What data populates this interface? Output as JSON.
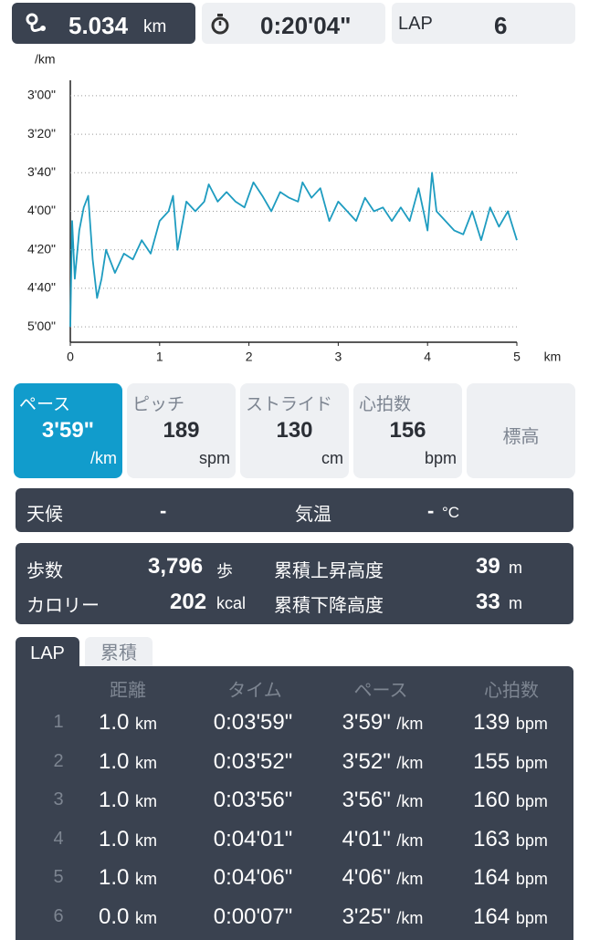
{
  "header": {
    "distance": "5.034",
    "distance_unit": "km",
    "time": "0:20'04\"",
    "lap_label": "LAP",
    "lap": "6"
  },
  "chart_data": {
    "type": "line",
    "y_label": "/km",
    "x_label": "km",
    "color": "#1e9cc0",
    "x": [
      0,
      0.02,
      0.05,
      0.1,
      0.15,
      0.2,
      0.25,
      0.3,
      0.35,
      0.4,
      0.5,
      0.6,
      0.7,
      0.8,
      0.9,
      1.0,
      1.1,
      1.15,
      1.2,
      1.3,
      1.4,
      1.5,
      1.55,
      1.65,
      1.75,
      1.85,
      1.95,
      2.05,
      2.15,
      2.25,
      2.35,
      2.45,
      2.55,
      2.6,
      2.7,
      2.8,
      2.9,
      3.0,
      3.1,
      3.2,
      3.3,
      3.4,
      3.5,
      3.6,
      3.7,
      3.8,
      3.9,
      4.0,
      4.05,
      4.1,
      4.2,
      4.3,
      4.4,
      4.5,
      4.6,
      4.7,
      4.8,
      4.9,
      5.0
    ],
    "values": [
      300,
      245,
      275,
      250,
      238,
      232,
      265,
      285,
      275,
      260,
      272,
      262,
      265,
      255,
      262,
      245,
      240,
      232,
      260,
      235,
      240,
      235,
      226,
      235,
      230,
      235,
      238,
      225,
      232,
      240,
      230,
      233,
      235,
      225,
      233,
      228,
      245,
      235,
      240,
      245,
      233,
      240,
      238,
      245,
      238,
      245,
      228,
      250,
      220,
      240,
      245,
      250,
      252,
      240,
      255,
      238,
      248,
      240,
      255
    ],
    "xlim": [
      0,
      5
    ],
    "xticks": [
      0,
      1,
      2,
      3,
      4,
      5
    ],
    "ylim": [
      172,
      308
    ],
    "y_reversed": true,
    "grid": true,
    "yticks": [
      {
        "value": 180,
        "label": "3'00\""
      },
      {
        "value": 200,
        "label": "3'20\""
      },
      {
        "value": 220,
        "label": "3'40\""
      },
      {
        "value": 240,
        "label": "4'00\""
      },
      {
        "value": 260,
        "label": "4'20\""
      },
      {
        "value": 280,
        "label": "4'40\""
      },
      {
        "value": 300,
        "label": "5'00\""
      }
    ]
  },
  "metrics": [
    {
      "label": "ペース",
      "value": "3'59\"",
      "unit": "/km"
    },
    {
      "label": "ピッチ",
      "value": "189",
      "unit": "spm"
    },
    {
      "label": "ストライド",
      "value": "130",
      "unit": "cm"
    },
    {
      "label": "心拍数",
      "value": "156",
      "unit": "bpm"
    },
    {
      "label": "標高"
    }
  ],
  "weather": {
    "label": "天候",
    "value": "-",
    "temp_label": "気温",
    "temp_value": "-",
    "temp_unit": "°C"
  },
  "stats": {
    "steps_label": "歩数",
    "steps": "3,796",
    "steps_unit": "歩",
    "calories_label": "カロリー",
    "calories": "202",
    "calories_unit": "kcal",
    "ascent_label": "累積上昇高度",
    "ascent": "39",
    "ascent_unit": "m",
    "descent_label": "累積下降高度",
    "descent": "33",
    "descent_unit": "m"
  },
  "tabs": [
    "LAP",
    "累積"
  ],
  "table": {
    "headers": [
      "距離",
      "タイム",
      "ペース",
      "心拍数"
    ],
    "rows": [
      [
        "1",
        "1.0",
        "km",
        "0:03'59\"",
        "3'59\"",
        "/km",
        "139",
        "bpm"
      ],
      [
        "2",
        "1.0",
        "km",
        "0:03'52\"",
        "3'52\"",
        "/km",
        "155",
        "bpm"
      ],
      [
        "3",
        "1.0",
        "km",
        "0:03'56\"",
        "3'56\"",
        "/km",
        "160",
        "bpm"
      ],
      [
        "4",
        "1.0",
        "km",
        "0:04'01\"",
        "4'01\"",
        "/km",
        "163",
        "bpm"
      ],
      [
        "5",
        "1.0",
        "km",
        "0:04'06\"",
        "4'06\"",
        "/km",
        "164",
        "bpm"
      ],
      [
        "6",
        "0.0",
        "km",
        "0:00'07\"",
        "3'25\"",
        "/km",
        "164",
        "bpm"
      ]
    ]
  }
}
